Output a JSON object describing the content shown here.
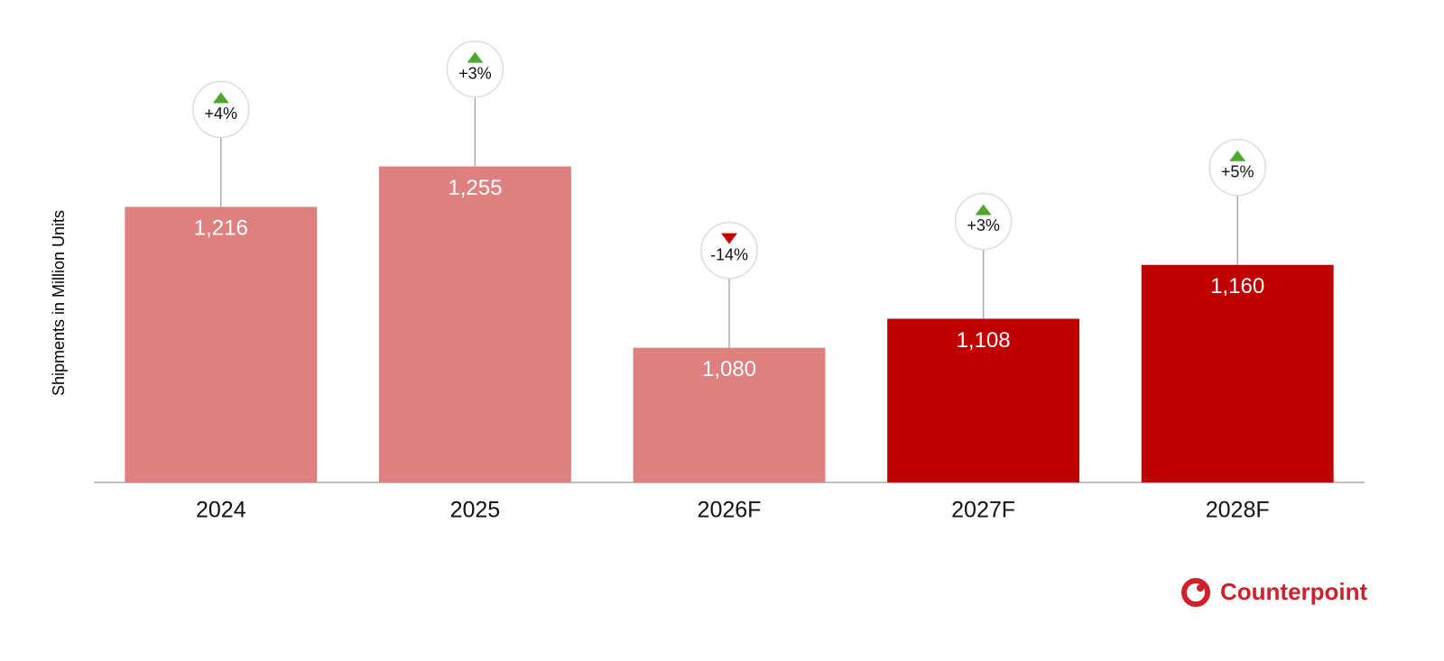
{
  "chart_data": {
    "type": "bar",
    "y_label": "Shipments in Million Units",
    "categories": [
      "2024",
      "2025",
      "2026F",
      "2027F",
      "2028F"
    ],
    "values": [
      1216,
      1255,
      1080,
      1108,
      1160
    ],
    "value_labels": [
      "1,216",
      "1,255",
      "1,080",
      "1,108",
      "1,160"
    ],
    "colors": [
      "#de7f80",
      "#de7f80",
      "#de7f80",
      "#c00000",
      "#c00000"
    ],
    "growth": {
      "values": [
        4,
        3,
        -14,
        3,
        5
      ],
      "value_labels": [
        "+4%",
        "+3%",
        "-14%",
        "+3%",
        "+5%"
      ]
    },
    "ylim": [
      950,
      1400
    ]
  },
  "logo": "Counterpoint"
}
